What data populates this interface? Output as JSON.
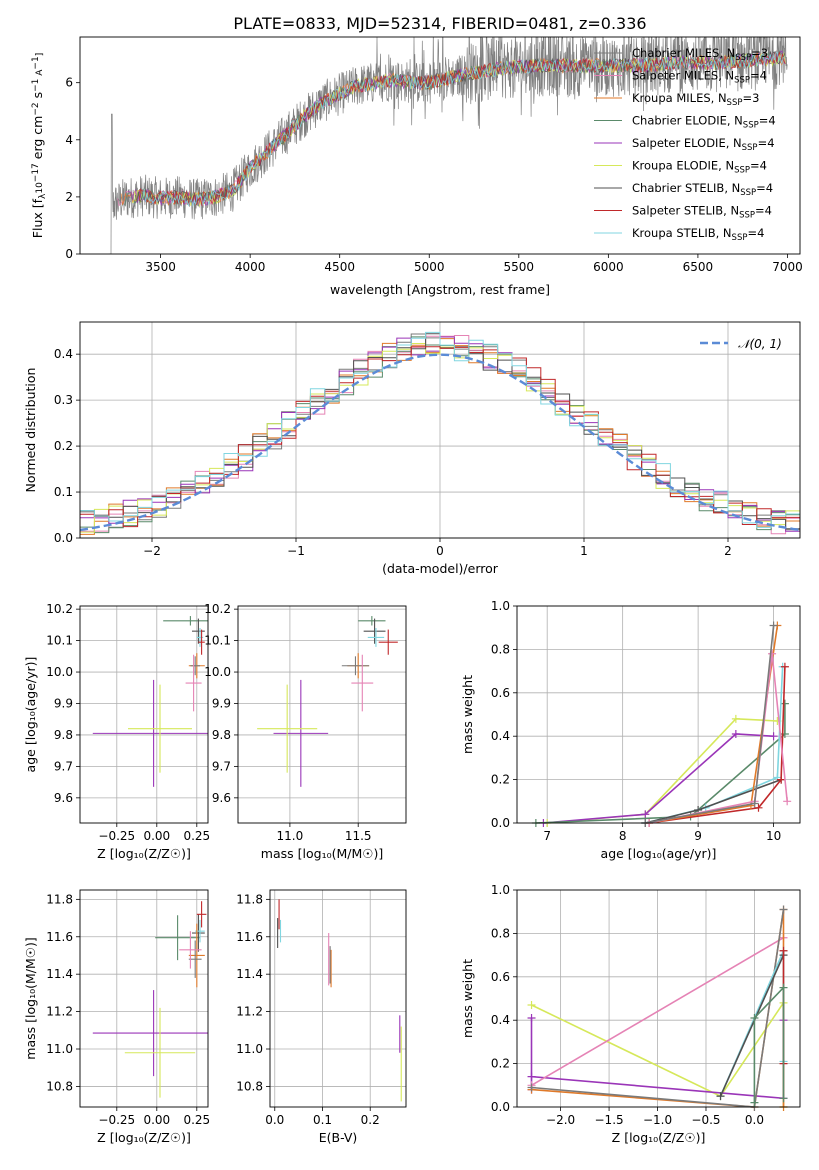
{
  "figure": {
    "title": "PLATE=0833, MJD=52314, FIBERID=0481, z=0.336"
  },
  "colors": {
    "data": "#808080",
    "chabrier_miles": "#7a7a7a",
    "salpeter_miles": "#e583b5",
    "kroupa_miles": "#e07a2a",
    "chabrier_elodie": "#5a8a6a",
    "salpeter_elodie": "#9a35b8",
    "kroupa_elodie": "#d6e85a",
    "chabrier_stelib": "#505050",
    "salpeter_stelib": "#c0282a",
    "kroupa_stelib": "#80d6e0",
    "gauss": "#5b8bd6",
    "grid": "#b0b0b0"
  },
  "chart_data": [
    {
      "id": "spectrum",
      "type": "line",
      "xlabel": "wavelength [Angstrom, rest frame]",
      "ylabel": "Flux [f$_\\lambda$10$^{-17}$ erg cm$^{-2}$ s$^{-1}$ A$^{-1}$]",
      "ylabel_parts": [
        "Flux [f",
        "λ",
        "10",
        "−17",
        " erg cm",
        "−2",
        " s",
        "−1",
        " A",
        "−1",
        "]"
      ],
      "xlim": [
        3050,
        7070
      ],
      "ylim": [
        0,
        7.6
      ],
      "xticks": [
        3500,
        4000,
        4500,
        5000,
        5500,
        6000,
        6500,
        7000
      ],
      "yticks": [
        0,
        2,
        4,
        6
      ],
      "grid": false,
      "legend_position": "top-right",
      "legend": [
        {
          "name": "Chabrier MILES, N",
          "sub": "SSP",
          "tail": "=3",
          "color": "chabrier_miles"
        },
        {
          "name": "Salpeter MILES, N",
          "sub": "SSP",
          "tail": "=4",
          "color": "salpeter_miles"
        },
        {
          "name": "Kroupa MILES, N",
          "sub": "SSP",
          "tail": "=3",
          "color": "kroupa_miles"
        },
        {
          "name": "Chabrier ELODIE, N",
          "sub": "SSP",
          "tail": "=4",
          "color": "chabrier_elodie"
        },
        {
          "name": "Salpeter ELODIE, N",
          "sub": "SSP",
          "tail": "=4",
          "color": "salpeter_elodie"
        },
        {
          "name": "Kroupa ELODIE, N",
          "sub": "SSP",
          "tail": "=4",
          "color": "kroupa_elodie"
        },
        {
          "name": "Chabrier STELIB, N",
          "sub": "SSP",
          "tail": "=4",
          "color": "chabrier_stelib"
        },
        {
          "name": "Salpeter STELIB, N",
          "sub": "SSP",
          "tail": "=4",
          "color": "salpeter_stelib"
        },
        {
          "name": "Kroupa STELIB, N",
          "sub": "SSP",
          "tail": "=4",
          "color": "kroupa_stelib"
        }
      ],
      "continuum": {
        "x": [
          3230,
          3300,
          3400,
          3500,
          3600,
          3700,
          3800,
          3900,
          4000,
          4100,
          4200,
          4300,
          4400,
          4500,
          4600,
          4700,
          4800,
          4900,
          5000,
          5200,
          5400,
          5600,
          5800,
          6000,
          6200,
          6400,
          6600,
          6800,
          7000
        ],
        "y": [
          1.7,
          1.95,
          2.05,
          1.95,
          2.0,
          1.9,
          2.0,
          2.2,
          3.0,
          3.6,
          4.2,
          4.8,
          5.3,
          5.6,
          5.9,
          6.0,
          6.1,
          6.0,
          6.0,
          6.3,
          6.5,
          6.6,
          6.6,
          6.6,
          6.6,
          6.7,
          6.7,
          6.8,
          6.9
        ]
      },
      "data_range": [
        3210,
        7000
      ]
    },
    {
      "id": "residuals",
      "type": "line",
      "xlabel": "(data-model)/error",
      "ylabel": "Normed distribution",
      "xlim": [
        -2.5,
        2.5
      ],
      "ylim": [
        0,
        0.47
      ],
      "xticks": [
        -2,
        -1,
        0,
        1,
        2
      ],
      "yticks": [
        0.0,
        0.1,
        0.2,
        0.3,
        0.4
      ],
      "grid": true,
      "legend_position": "top-right",
      "legend": [
        {
          "name": "𝒩(0, 1)",
          "color": "gauss",
          "dashed": true
        }
      ],
      "bin_width": 0.1
    },
    {
      "id": "age_vs_Z",
      "type": "scatter",
      "xlabel": "Z [log₁₀(Z/Z☉)]",
      "ylabel": "age  [log₁₀(age/yr)]",
      "xlim": [
        -0.48,
        0.32
      ],
      "ylim": [
        9.52,
        10.21
      ],
      "xticks": [
        -0.25,
        0.0,
        0.25
      ],
      "yticks": [
        9.6,
        9.7,
        9.8,
        9.9,
        10.0,
        10.1,
        10.2
      ],
      "grid": true,
      "points": [
        {
          "c": "salpeter_elodie",
          "x": -0.02,
          "xerr": 0.38,
          "y": 9.805,
          "yerr": 0.17
        },
        {
          "c": "kroupa_elodie",
          "x": 0.02,
          "xerr": 0.2,
          "y": 9.82,
          "yerr": 0.14
        },
        {
          "c": "chabrier_elodie",
          "x": 0.21,
          "xerr": 0.17,
          "y": 10.163,
          "yerr": 0.015
        },
        {
          "c": "chabrier_stelib",
          "x": 0.26,
          "xerr": 0.04,
          "y": 10.13,
          "yerr": 0.04
        },
        {
          "c": "kroupa_stelib",
          "x": 0.27,
          "xerr": 0.02,
          "y": 10.11,
          "yerr": 0.03
        },
        {
          "c": "salpeter_stelib",
          "x": 0.28,
          "xerr": 0.02,
          "y": 10.095,
          "yerr": 0.04
        },
        {
          "c": "kroupa_miles",
          "x": 0.25,
          "xerr": 0.05,
          "y": 10.02,
          "yerr": 0.04
        },
        {
          "c": "chabrier_miles",
          "x": 0.24,
          "xerr": 0.03,
          "y": 10.02,
          "yerr": 0.03
        },
        {
          "c": "salpeter_miles",
          "x": 0.23,
          "xerr": 0.05,
          "y": 9.965,
          "yerr": 0.09
        }
      ]
    },
    {
      "id": "age_vs_mass",
      "type": "scatter",
      "xlabel": "mass [log₁₀(M/M☉)]",
      "ylabel": "",
      "xlim": [
        10.62,
        11.85
      ],
      "ylim": [
        9.52,
        10.21
      ],
      "xticks": [
        11.0,
        11.5
      ],
      "yticks": [
        9.6,
        9.7,
        9.8,
        9.9,
        10.0,
        10.1,
        10.2
      ],
      "grid": true,
      "points": [
        {
          "c": "salpeter_elodie",
          "x": 11.08,
          "xerr": 0.2,
          "y": 9.805,
          "yerr": 0.17
        },
        {
          "c": "kroupa_elodie",
          "x": 10.98,
          "xerr": 0.22,
          "y": 9.82,
          "yerr": 0.14
        },
        {
          "c": "chabrier_elodie",
          "x": 11.6,
          "xerr": 0.1,
          "y": 10.163,
          "yerr": 0.015
        },
        {
          "c": "chabrier_stelib",
          "x": 11.62,
          "xerr": 0.08,
          "y": 10.13,
          "yerr": 0.04
        },
        {
          "c": "kroupa_stelib",
          "x": 11.63,
          "xerr": 0.06,
          "y": 10.11,
          "yerr": 0.03
        },
        {
          "c": "salpeter_stelib",
          "x": 11.72,
          "xerr": 0.07,
          "y": 10.095,
          "yerr": 0.04
        },
        {
          "c": "kroupa_miles",
          "x": 11.5,
          "xerr": 0.08,
          "y": 10.02,
          "yerr": 0.04
        },
        {
          "c": "chabrier_miles",
          "x": 11.48,
          "xerr": 0.1,
          "y": 10.02,
          "yerr": 0.03
        },
        {
          "c": "salpeter_miles",
          "x": 11.53,
          "xerr": 0.08,
          "y": 9.965,
          "yerr": 0.09
        }
      ]
    },
    {
      "id": "mass_weight_vs_age",
      "type": "line",
      "xlabel": "age  [log₁₀(age/yr)]",
      "ylabel": "mass weight",
      "xlim": [
        6.6,
        10.35
      ],
      "ylim": [
        0,
        1.0
      ],
      "xticks": [
        7,
        8,
        9,
        10
      ],
      "yticks": [
        0.0,
        0.2,
        0.4,
        0.6,
        0.8,
        1.0
      ],
      "grid": true,
      "series": [
        {
          "c": "kroupa_elodie",
          "x": [
            7.0,
            8.3,
            9.5,
            10.05
          ],
          "y": [
            0.0,
            0.04,
            0.48,
            0.47
          ]
        },
        {
          "c": "salpeter_elodie",
          "x": [
            6.95,
            8.3,
            9.5,
            10.0
          ],
          "y": [
            0.0,
            0.04,
            0.41,
            0.4
          ]
        },
        {
          "c": "chabrier_elodie",
          "x": [
            6.85,
            8.9,
            10.15,
            10.15
          ],
          "y": [
            0.0,
            0.03,
            0.41,
            0.55
          ]
        },
        {
          "c": "kroupa_stelib",
          "x": [
            8.3,
            9.1,
            10.05,
            10.12
          ],
          "y": [
            0.0,
            0.07,
            0.21,
            0.72
          ]
        },
        {
          "c": "chabrier_stelib",
          "x": [
            8.3,
            9.0,
            10.1
          ],
          "y": [
            0.0,
            0.06,
            0.2
          ]
        },
        {
          "c": "salpeter_stelib",
          "x": [
            8.35,
            9.8,
            10.1,
            10.15
          ],
          "y": [
            0.0,
            0.07,
            0.2,
            0.72
          ]
        },
        {
          "c": "kroupa_miles",
          "x": [
            8.35,
            9.7,
            10.05
          ],
          "y": [
            0.0,
            0.08,
            0.91
          ]
        },
        {
          "c": "salpeter_miles",
          "x": [
            8.35,
            9.75,
            9.98,
            10.18
          ],
          "y": [
            0.0,
            0.1,
            0.78,
            0.1
          ]
        },
        {
          "c": "chabrier_miles",
          "x": [
            8.3,
            9.75,
            10.0
          ],
          "y": [
            0.0,
            0.09,
            0.91
          ]
        }
      ]
    },
    {
      "id": "mass_vs_Z",
      "type": "scatter",
      "xlabel": "Z [log₁₀(Z/Z☉)]",
      "ylabel": "mass [log₁₀(M/M☉)]",
      "xlim": [
        -0.48,
        0.32
      ],
      "ylim": [
        10.69,
        11.85
      ],
      "xticks": [
        -0.25,
        0.0,
        0.25
      ],
      "yticks": [
        10.8,
        11.0,
        11.2,
        11.4,
        11.6,
        11.8
      ],
      "grid": true,
      "points": [
        {
          "c": "salpeter_elodie",
          "x": -0.02,
          "xerr": 0.38,
          "y": 11.085,
          "yerr": 0.23
        },
        {
          "c": "kroupa_elodie",
          "x": 0.02,
          "xerr": 0.22,
          "y": 10.98,
          "yerr": 0.24
        },
        {
          "c": "chabrier_elodie",
          "x": 0.13,
          "xerr": 0.14,
          "y": 11.595,
          "yerr": 0.12
        },
        {
          "c": "chabrier_stelib",
          "x": 0.26,
          "xerr": 0.04,
          "y": 11.62,
          "yerr": 0.1
        },
        {
          "c": "kroupa_stelib",
          "x": 0.27,
          "xerr": 0.03,
          "y": 11.63,
          "yerr": 0.06
        },
        {
          "c": "salpeter_stelib",
          "x": 0.28,
          "xerr": 0.03,
          "y": 11.72,
          "yerr": 0.07
        },
        {
          "c": "kroupa_miles",
          "x": 0.25,
          "xerr": 0.05,
          "y": 11.5,
          "yerr": 0.17
        },
        {
          "c": "chabrier_miles",
          "x": 0.24,
          "xerr": 0.04,
          "y": 11.48,
          "yerr": 0.1
        },
        {
          "c": "salpeter_miles",
          "x": 0.21,
          "xerr": 0.07,
          "y": 11.53,
          "yerr": 0.1
        }
      ]
    },
    {
      "id": "mass_vs_ebv",
      "type": "scatter",
      "xlabel": "E(B-V)",
      "ylabel": "",
      "xlim": [
        -0.01,
        0.275
      ],
      "ylim": [
        10.69,
        11.85
      ],
      "xticks": [
        0.0,
        0.1,
        0.2
      ],
      "yticks": [
        10.8,
        11.0,
        11.2,
        11.4,
        11.6,
        11.8
      ],
      "grid": true,
      "points": [
        {
          "c": "chabrier_stelib",
          "x": 0.006,
          "xerr": 0,
          "y": 11.62,
          "yerr": 0.08
        },
        {
          "c": "salpeter_stelib",
          "x": 0.009,
          "xerr": 0,
          "y": 11.72,
          "yerr": 0.08
        },
        {
          "c": "kroupa_stelib",
          "x": 0.012,
          "xerr": 0,
          "y": 11.63,
          "yerr": 0.06
        },
        {
          "c": "salpeter_miles",
          "x": 0.113,
          "xerr": 0,
          "y": 11.48,
          "yerr": 0.14
        },
        {
          "c": "kroupa_miles",
          "x": 0.118,
          "xerr": 0,
          "y": 11.43,
          "yerr": 0.1
        },
        {
          "c": "chabrier_miles",
          "x": 0.116,
          "xerr": 0,
          "y": 11.45,
          "yerr": 0.1
        },
        {
          "c": "salpeter_elodie",
          "x": 0.262,
          "xerr": 0,
          "y": 11.08,
          "yerr": 0.1
        },
        {
          "c": "kroupa_elodie",
          "x": 0.265,
          "xerr": 0,
          "y": 10.92,
          "yerr": 0.2
        }
      ]
    },
    {
      "id": "mass_weight_vs_Z",
      "type": "line",
      "xlabel": "Z [log₁₀(Z/Z☉)]",
      "ylabel": "mass weight",
      "xlim": [
        -2.45,
        0.47
      ],
      "ylim": [
        0,
        1.0
      ],
      "xticks": [
        -2.0,
        -1.5,
        -1.0,
        -0.5,
        0.0
      ],
      "yticks": [
        0.0,
        0.2,
        0.4,
        0.6,
        0.8,
        1.0
      ],
      "grid": true,
      "series": [
        {
          "c": "kroupa_elodie",
          "x": [
            -2.3,
            -0.35,
            0.3,
            0.3
          ],
          "y": [
            0.47,
            0.05,
            0.48,
            0.0
          ]
        },
        {
          "c": "salpeter_elodie",
          "x": [
            -2.3,
            -2.3,
            -2.3,
            0.3,
            0.3
          ],
          "y": [
            0.41,
            0.08,
            0.14,
            0.04,
            0.4
          ]
        },
        {
          "c": "salpeter_miles",
          "x": [
            -2.3,
            0.3
          ],
          "y": [
            0.1,
            0.78
          ]
        },
        {
          "c": "kroupa_miles",
          "x": [
            -2.3,
            0.0,
            0.3,
            0.3
          ],
          "y": [
            0.08,
            0.0,
            0.91,
            0.0
          ]
        },
        {
          "c": "chabrier_miles",
          "x": [
            -2.3,
            0.0,
            0.3
          ],
          "y": [
            0.09,
            0.0,
            0.91
          ]
        },
        {
          "c": "kroupa_stelib",
          "x": [
            -0.35,
            0.3,
            0.3
          ],
          "y": [
            0.05,
            0.72,
            0.21
          ]
        },
        {
          "c": "chabrier_stelib",
          "x": [
            -0.35,
            0.3
          ],
          "y": [
            0.05,
            0.7
          ]
        },
        {
          "c": "salpeter_stelib",
          "x": [
            0.3,
            0.3
          ],
          "y": [
            0.2,
            0.72
          ]
        },
        {
          "c": "chabrier_elodie",
          "x": [
            0.0,
            0.0,
            0.3,
            0.3
          ],
          "y": [
            0.02,
            0.41,
            0.55,
            0.04
          ]
        }
      ]
    }
  ]
}
